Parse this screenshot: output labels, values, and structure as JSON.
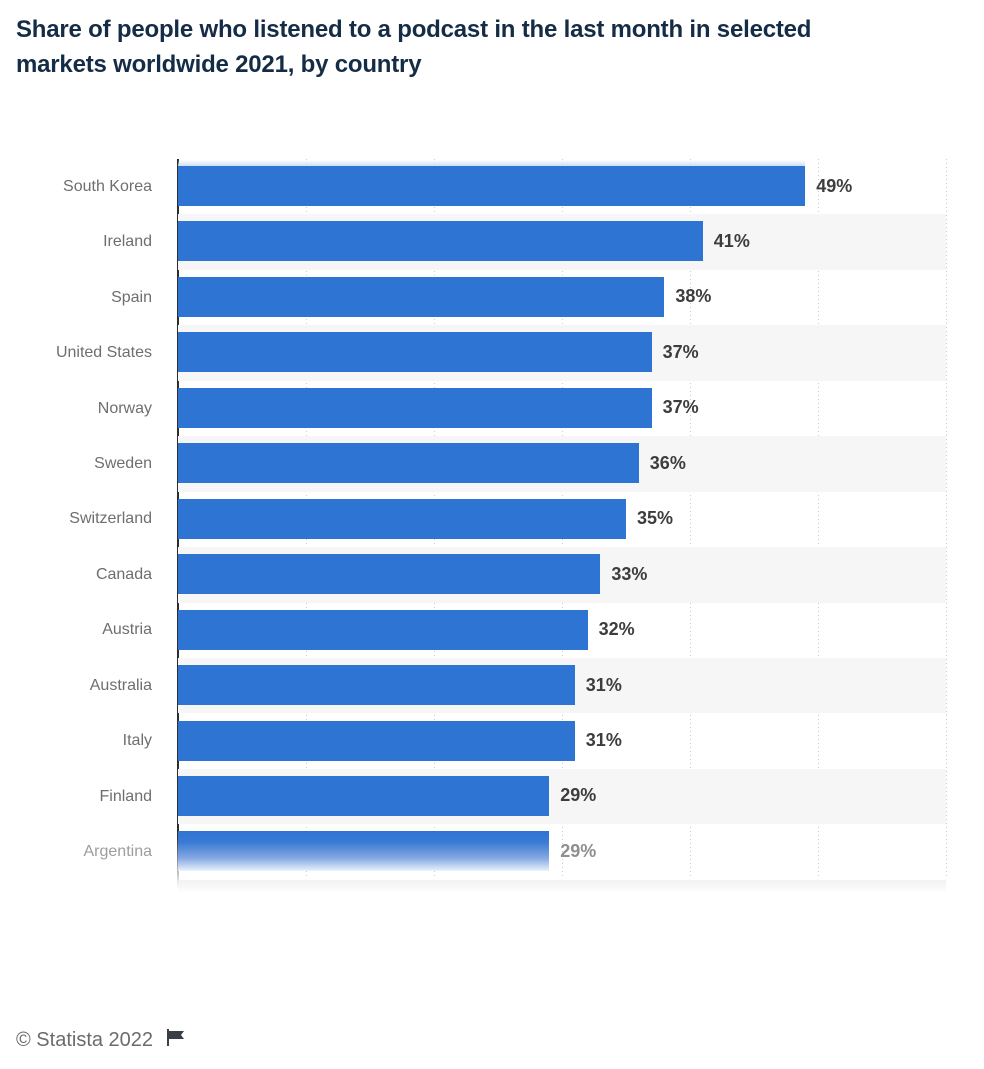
{
  "header": {
    "title_line1": "Share of people who listened to a podcast in the last month in selected",
    "title_line2": "markets worldwide 2021, by country"
  },
  "chart_data": {
    "type": "bar",
    "orientation": "horizontal",
    "title": "Share of people who listened to a podcast in the last month in selected markets worldwide 2021, by country",
    "categories": [
      "South Korea",
      "Ireland",
      "Spain",
      "United States",
      "Norway",
      "Sweden",
      "Switzerland",
      "Canada",
      "Austria",
      "Australia",
      "Italy",
      "Finland",
      "Argentina"
    ],
    "values": [
      49,
      41,
      38,
      37,
      37,
      36,
      35,
      33,
      32,
      31,
      31,
      29,
      29
    ],
    "unit": "%",
    "xlabel": "",
    "ylabel": "",
    "xlim": [
      0,
      60
    ],
    "xticks": [
      10,
      20,
      30,
      40,
      50,
      60
    ],
    "grid": "dotted-vertical",
    "legend": "none",
    "bar_color": "#2e74d2",
    "stripe_color": "#f6f6f7",
    "last_row_faded": true
  },
  "footer": {
    "copyright": "© Statista 2022",
    "flag_icon": "report-flag-icon"
  }
}
